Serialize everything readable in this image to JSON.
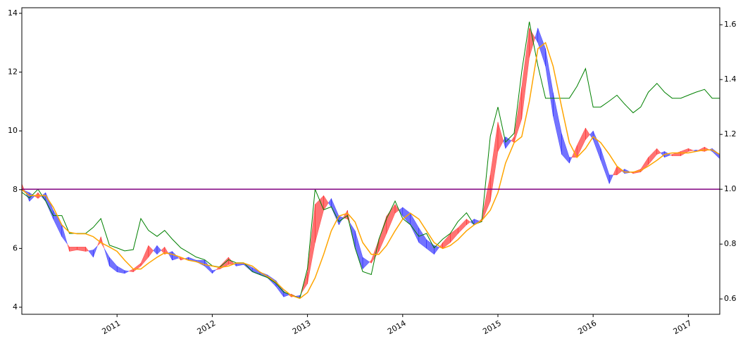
{
  "chart_data": {
    "type": "line",
    "x": [
      2010.0,
      2010.08,
      2010.17,
      2010.25,
      2010.33,
      2010.42,
      2010.5,
      2010.58,
      2010.67,
      2010.75,
      2010.83,
      2010.92,
      2011.0,
      2011.08,
      2011.17,
      2011.25,
      2011.33,
      2011.42,
      2011.5,
      2011.58,
      2011.67,
      2011.75,
      2011.83,
      2011.92,
      2012.0,
      2012.08,
      2012.17,
      2012.25,
      2012.33,
      2012.42,
      2012.5,
      2012.58,
      2012.67,
      2012.75,
      2012.83,
      2012.92,
      2013.0,
      2013.08,
      2013.17,
      2013.25,
      2013.33,
      2013.42,
      2013.5,
      2013.58,
      2013.67,
      2013.75,
      2013.83,
      2013.92,
      2014.0,
      2014.08,
      2014.17,
      2014.25,
      2014.33,
      2014.42,
      2014.5,
      2014.58,
      2014.67,
      2014.75,
      2014.83,
      2014.92,
      2015.0,
      2015.08,
      2015.17,
      2015.25,
      2015.33,
      2015.42,
      2015.5,
      2015.58,
      2015.67,
      2015.75,
      2015.83,
      2015.92,
      2016.0,
      2016.08,
      2016.17,
      2016.25,
      2016.33,
      2016.42,
      2016.5,
      2016.58,
      2016.67,
      2016.75,
      2016.83,
      2016.92,
      2017.0,
      2017.08,
      2017.17,
      2017.25,
      2017.33
    ],
    "band": {
      "color_above": "#ff0000",
      "color_below": "#0000ff",
      "opacity": 0.55,
      "values": [
        8.2,
        7.6,
        7.9,
        7.6,
        7.0,
        6.4,
        6.05,
        6.05,
        6.05,
        5.7,
        6.4,
        5.4,
        5.2,
        5.15,
        5.3,
        5.5,
        6.1,
        5.8,
        6.05,
        5.6,
        5.7,
        5.6,
        5.55,
        5.4,
        5.15,
        5.4,
        5.7,
        5.4,
        5.45,
        5.2,
        5.1,
        5.0,
        4.7,
        4.35,
        4.45,
        4.3,
        5.2,
        7.5,
        7.8,
        7.4,
        6.8,
        7.3,
        6.0,
        5.3,
        5.6,
        6.3,
        7.1,
        7.5,
        7.1,
        6.8,
        6.2,
        6.0,
        5.8,
        6.2,
        6.5,
        6.7,
        7.0,
        6.8,
        7.0,
        8.5,
        10.3,
        9.4,
        9.8,
        11.5,
        13.5,
        13.0,
        12.2,
        10.5,
        9.2,
        8.9,
        9.5,
        10.1,
        9.7,
        9.0,
        8.2,
        8.8,
        8.55,
        8.6,
        8.7,
        9.1,
        9.4,
        9.1,
        9.2,
        9.3,
        9.4,
        9.3,
        9.45,
        9.3,
        9.05
      ],
      "values2": [
        8.0,
        7.9,
        7.7,
        7.9,
        7.3,
        6.8,
        5.9,
        5.95,
        5.9,
        5.95,
        6.2,
        5.7,
        5.4,
        5.25,
        5.2,
        5.4,
        5.7,
        6.1,
        5.8,
        5.9,
        5.6,
        5.7,
        5.6,
        5.6,
        5.25,
        5.3,
        5.45,
        5.5,
        5.5,
        5.35,
        5.2,
        5.1,
        4.9,
        4.55,
        4.35,
        4.4,
        4.8,
        6.2,
        7.3,
        7.7,
        7.1,
        7.0,
        6.6,
        5.7,
        5.5,
        5.9,
        6.5,
        7.2,
        7.4,
        7.2,
        6.7,
        6.3,
        6.1,
        6.0,
        6.2,
        6.5,
        6.8,
        7.0,
        6.9,
        7.6,
        9.3,
        9.8,
        9.6,
        10.4,
        12.5,
        13.5,
        12.8,
        11.3,
        9.9,
        9.1,
        9.1,
        9.7,
        10.0,
        9.4,
        8.5,
        8.5,
        8.7,
        8.55,
        8.6,
        8.85,
        9.2,
        9.3,
        9.15,
        9.15,
        9.3,
        9.35,
        9.3,
        9.4,
        9.2
      ]
    },
    "series": [
      {
        "color": "#008000",
        "axis": "y2",
        "values": [
          0.989,
          0.968,
          1.0,
          0.957,
          0.904,
          0.904,
          0.839,
          0.839,
          0.839,
          0.861,
          0.893,
          0.796,
          0.786,
          0.775,
          0.78,
          0.893,
          0.85,
          0.828,
          0.85,
          0.818,
          0.786,
          0.77,
          0.753,
          0.743,
          0.721,
          0.716,
          0.743,
          0.732,
          0.732,
          0.7,
          0.689,
          0.678,
          0.657,
          0.625,
          0.614,
          0.603,
          0.711,
          1.0,
          0.925,
          0.936,
          0.882,
          0.904,
          0.786,
          0.7,
          0.689,
          0.818,
          0.893,
          0.957,
          0.893,
          0.871,
          0.828,
          0.839,
          0.786,
          0.818,
          0.839,
          0.882,
          0.914,
          0.871,
          0.882,
          1.193,
          1.3,
          1.172,
          1.204,
          1.429,
          1.611,
          1.45,
          1.332,
          1.332,
          1.332,
          1.332,
          1.375,
          1.44,
          1.3,
          1.3,
          1.322,
          1.343,
          1.311,
          1.279,
          1.3,
          1.354,
          1.386,
          1.354,
          1.332,
          1.332,
          1.343,
          1.354,
          1.364,
          1.332,
          1.332
        ]
      },
      {
        "color": "#ffa500",
        "values": [
          8.0,
          7.8,
          7.8,
          7.8,
          7.4,
          6.8,
          6.55,
          6.5,
          6.5,
          6.4,
          6.2,
          6.05,
          5.9,
          5.6,
          5.3,
          5.3,
          5.5,
          5.7,
          5.85,
          5.8,
          5.7,
          5.6,
          5.55,
          5.45,
          5.4,
          5.35,
          5.4,
          5.5,
          5.5,
          5.4,
          5.2,
          5.05,
          4.85,
          4.6,
          4.4,
          4.3,
          4.5,
          5.0,
          5.8,
          6.6,
          7.1,
          7.2,
          6.9,
          6.2,
          5.8,
          5.8,
          6.1,
          6.6,
          7.0,
          7.2,
          7.0,
          6.6,
          6.2,
          6.0,
          6.1,
          6.3,
          6.6,
          6.8,
          6.95,
          7.3,
          7.9,
          8.9,
          9.6,
          9.8,
          11.0,
          12.8,
          13.0,
          12.2,
          10.8,
          9.6,
          9.1,
          9.4,
          9.8,
          9.6,
          9.2,
          8.8,
          8.6,
          8.6,
          8.65,
          8.8,
          9.0,
          9.2,
          9.25,
          9.25,
          9.25,
          9.3,
          9.35,
          9.35,
          9.2
        ]
      }
    ],
    "hline": {
      "value": 1,
      "axis": "y2",
      "color": "#800080"
    },
    "xlim": [
      2010.0,
      2017.33
    ],
    "ylim": [
      3.76,
      14.19
    ],
    "y2lim": [
      0.544,
      1.662
    ],
    "xticks": [
      2011,
      2012,
      2013,
      2014,
      2015,
      2016,
      2017
    ],
    "yticks": [
      4,
      6,
      8,
      10,
      12,
      14
    ],
    "y2ticks": [
      0.6,
      0.8,
      {
        "value": 1,
        "label": "1.0"
      },
      1.2,
      1.4,
      1.6
    ]
  }
}
